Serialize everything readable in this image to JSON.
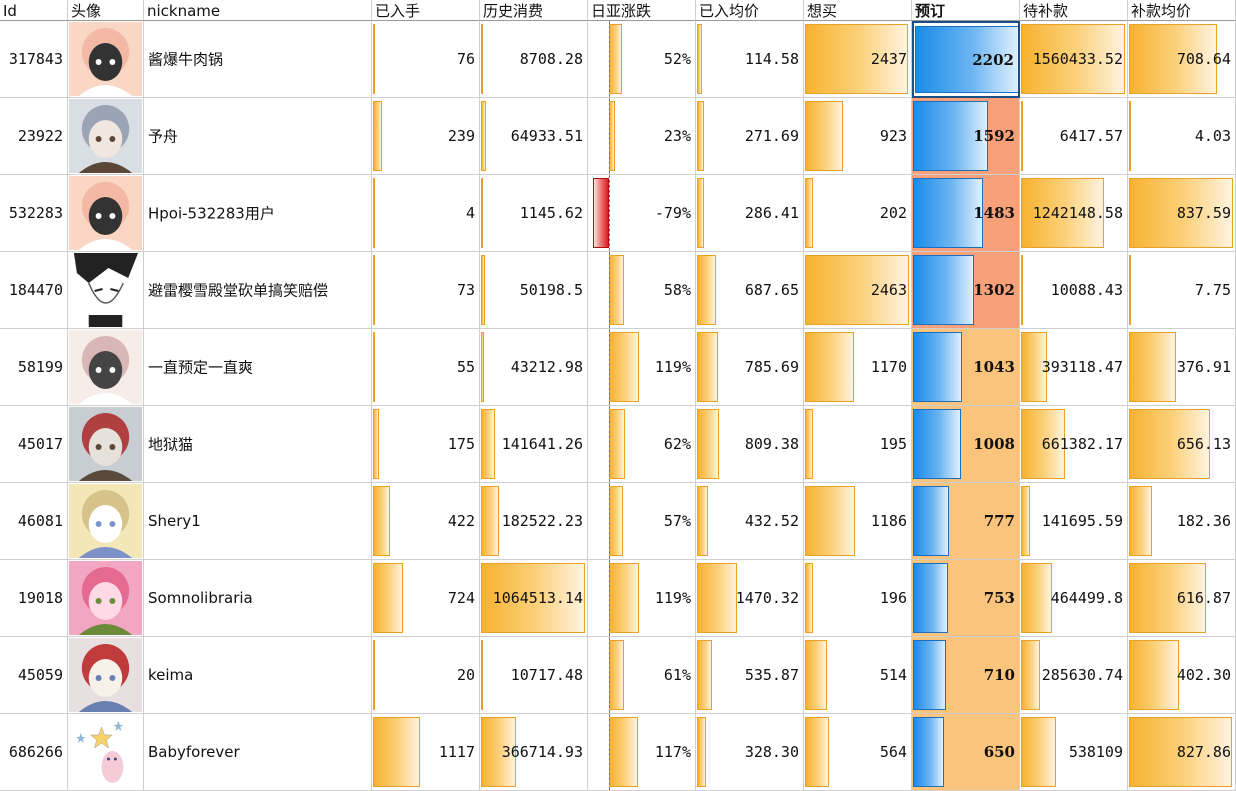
{
  "headers": [
    "Id",
    "头像",
    "nickname",
    "已入手",
    "历史消费",
    "日亚涨跌",
    "已入均价",
    "想买",
    "预订",
    "待补款",
    "补款均价"
  ],
  "colors": {
    "bar_orange": "#f7b22f",
    "bar_blue": "#1a8be8",
    "bar_red": "#d91f1f",
    "preorder_bg": "#fbc47c",
    "preorder_bg_top": "#f7a07a",
    "preorder_bg_mid": "#f9a876"
  },
  "rows": [
    {
      "id": "317843",
      "avatar": "pink-hair-chibi-avatar",
      "nickname": "酱爆牛肉锅",
      "owned": "76",
      "spent": "8708.28",
      "jp_change": "52%",
      "avg_owned": "114.58",
      "want": "2437",
      "preorder": "2202",
      "balance": "1560433.52",
      "avg_balance": "708.64",
      "levels": {
        "owned": 0.02,
        "spent": 0.005,
        "jp_change": 0.44,
        "jp_neg": false,
        "avg_owned": 0.05,
        "want": 0.99,
        "preorder": 1.0,
        "balance": 1.0,
        "avg_balance": 0.85
      }
    },
    {
      "id": "23922",
      "avatar": "photo-girl-avatar",
      "nickname": "予舟",
      "owned": "239",
      "spent": "64933.51",
      "jp_change": "23%",
      "avg_owned": "271.69",
      "want": "923",
      "preorder": "1592",
      "balance": "6417.57",
      "avg_balance": "4.03",
      "levels": {
        "owned": 0.09,
        "spent": 0.05,
        "jp_change": 0.19,
        "jp_neg": false,
        "avg_owned": 0.07,
        "want": 0.37,
        "preorder": 0.72,
        "balance": 0.0,
        "avg_balance": 0.0
      }
    },
    {
      "id": "532283",
      "avatar": "pink-hair-chibi-avatar",
      "nickname": "Hpoi-532283用户",
      "owned": "4",
      "spent": "1145.62",
      "jp_change": "-79%",
      "avg_owned": "286.41",
      "want": "202",
      "preorder": "1483",
      "balance": "1242148.58",
      "avg_balance": "837.59",
      "levels": {
        "owned": 0.0,
        "spent": 0.0,
        "jp_change": -0.79,
        "jp_neg": true,
        "avg_owned": 0.07,
        "want": 0.08,
        "preorder": 0.67,
        "balance": 0.8,
        "avg_balance": 1.0
      }
    },
    {
      "id": "184470",
      "avatar": "manga-sketch-avatar",
      "nickname": "避雷樱雪殿堂砍单搞笑赔偿",
      "owned": "73",
      "spent": "50198.5",
      "jp_change": "58%",
      "avg_owned": "687.65",
      "want": "2463",
      "preorder": "1302",
      "balance": "10088.43",
      "avg_balance": "7.75",
      "levels": {
        "owned": 0.02,
        "spent": 0.04,
        "jp_change": 0.49,
        "jp_neg": false,
        "avg_owned": 0.18,
        "want": 1.0,
        "preorder": 0.59,
        "balance": 0.0,
        "avg_balance": 0.0
      }
    },
    {
      "id": "58199",
      "avatar": "crying-anime-avatar",
      "nickname": "一直预定一直爽",
      "owned": "55",
      "spent": "43212.98",
      "jp_change": "119%",
      "avg_owned": "785.69",
      "want": "1170",
      "preorder": "1043",
      "balance": "393118.47",
      "avg_balance": "376.91",
      "levels": {
        "owned": 0.01,
        "spent": 0.03,
        "jp_change": 1.0,
        "jp_neg": false,
        "avg_owned": 0.2,
        "want": 0.47,
        "preorder": 0.47,
        "balance": 0.25,
        "avg_balance": 0.45
      }
    },
    {
      "id": "45017",
      "avatar": "photo-room-avatar",
      "nickname": "地狱猫",
      "owned": "175",
      "spent": "141641.26",
      "jp_change": "62%",
      "avg_owned": "809.38",
      "want": "195",
      "preorder": "1008",
      "balance": "661382.17",
      "avg_balance": "656.13",
      "levels": {
        "owned": 0.06,
        "spent": 0.13,
        "jp_change": 0.52,
        "jp_neg": false,
        "avg_owned": 0.21,
        "want": 0.08,
        "preorder": 0.46,
        "balance": 0.42,
        "avg_balance": 0.78
      }
    },
    {
      "id": "46081",
      "avatar": "blonde-anime-avatar",
      "nickname": "Shery1",
      "owned": "422",
      "spent": "182522.23",
      "jp_change": "57%",
      "avg_owned": "432.52",
      "want": "1186",
      "preorder": "777",
      "balance": "141695.59",
      "avg_balance": "182.36",
      "levels": {
        "owned": 0.16,
        "spent": 0.17,
        "jp_change": 0.48,
        "jp_neg": false,
        "avg_owned": 0.11,
        "want": 0.48,
        "preorder": 0.35,
        "balance": 0.09,
        "avg_balance": 0.22
      }
    },
    {
      "id": "19018",
      "avatar": "pink-flower-anime-avatar",
      "nickname": "Somnolibraria",
      "owned": "724",
      "spent": "1064513.14",
      "jp_change": "119%",
      "avg_owned": "1470.32",
      "want": "196",
      "preorder": "753",
      "balance": "464499.8",
      "avg_balance": "616.87",
      "levels": {
        "owned": 0.29,
        "spent": 1.0,
        "jp_change": 1.0,
        "jp_neg": false,
        "avg_owned": 0.38,
        "want": 0.08,
        "preorder": 0.34,
        "balance": 0.3,
        "avg_balance": 0.74
      }
    },
    {
      "id": "45059",
      "avatar": "group-anime-avatar",
      "nickname": "keima",
      "owned": "20",
      "spent": "10717.48",
      "jp_change": "61%",
      "avg_owned": "535.87",
      "want": "514",
      "preorder": "710",
      "balance": "285630.74",
      "avg_balance": "402.30",
      "levels": {
        "owned": 0.0,
        "spent": 0.01,
        "jp_change": 0.51,
        "jp_neg": false,
        "avg_owned": 0.14,
        "want": 0.21,
        "preorder": 0.32,
        "balance": 0.18,
        "avg_balance": 0.48
      }
    },
    {
      "id": "686266",
      "avatar": "cartoon-star-avatar",
      "nickname": "Babyforever",
      "owned": "1117",
      "spent": "366714.93",
      "jp_change": "117%",
      "avg_owned": "328.30",
      "want": "564",
      "preorder": "650",
      "balance": "538109",
      "avg_balance": "827.86",
      "levels": {
        "owned": 0.45,
        "spent": 0.34,
        "jp_change": 0.98,
        "jp_neg": false,
        "avg_owned": 0.09,
        "want": 0.23,
        "preorder": 0.3,
        "balance": 0.34,
        "avg_balance": 0.99
      }
    }
  ]
}
